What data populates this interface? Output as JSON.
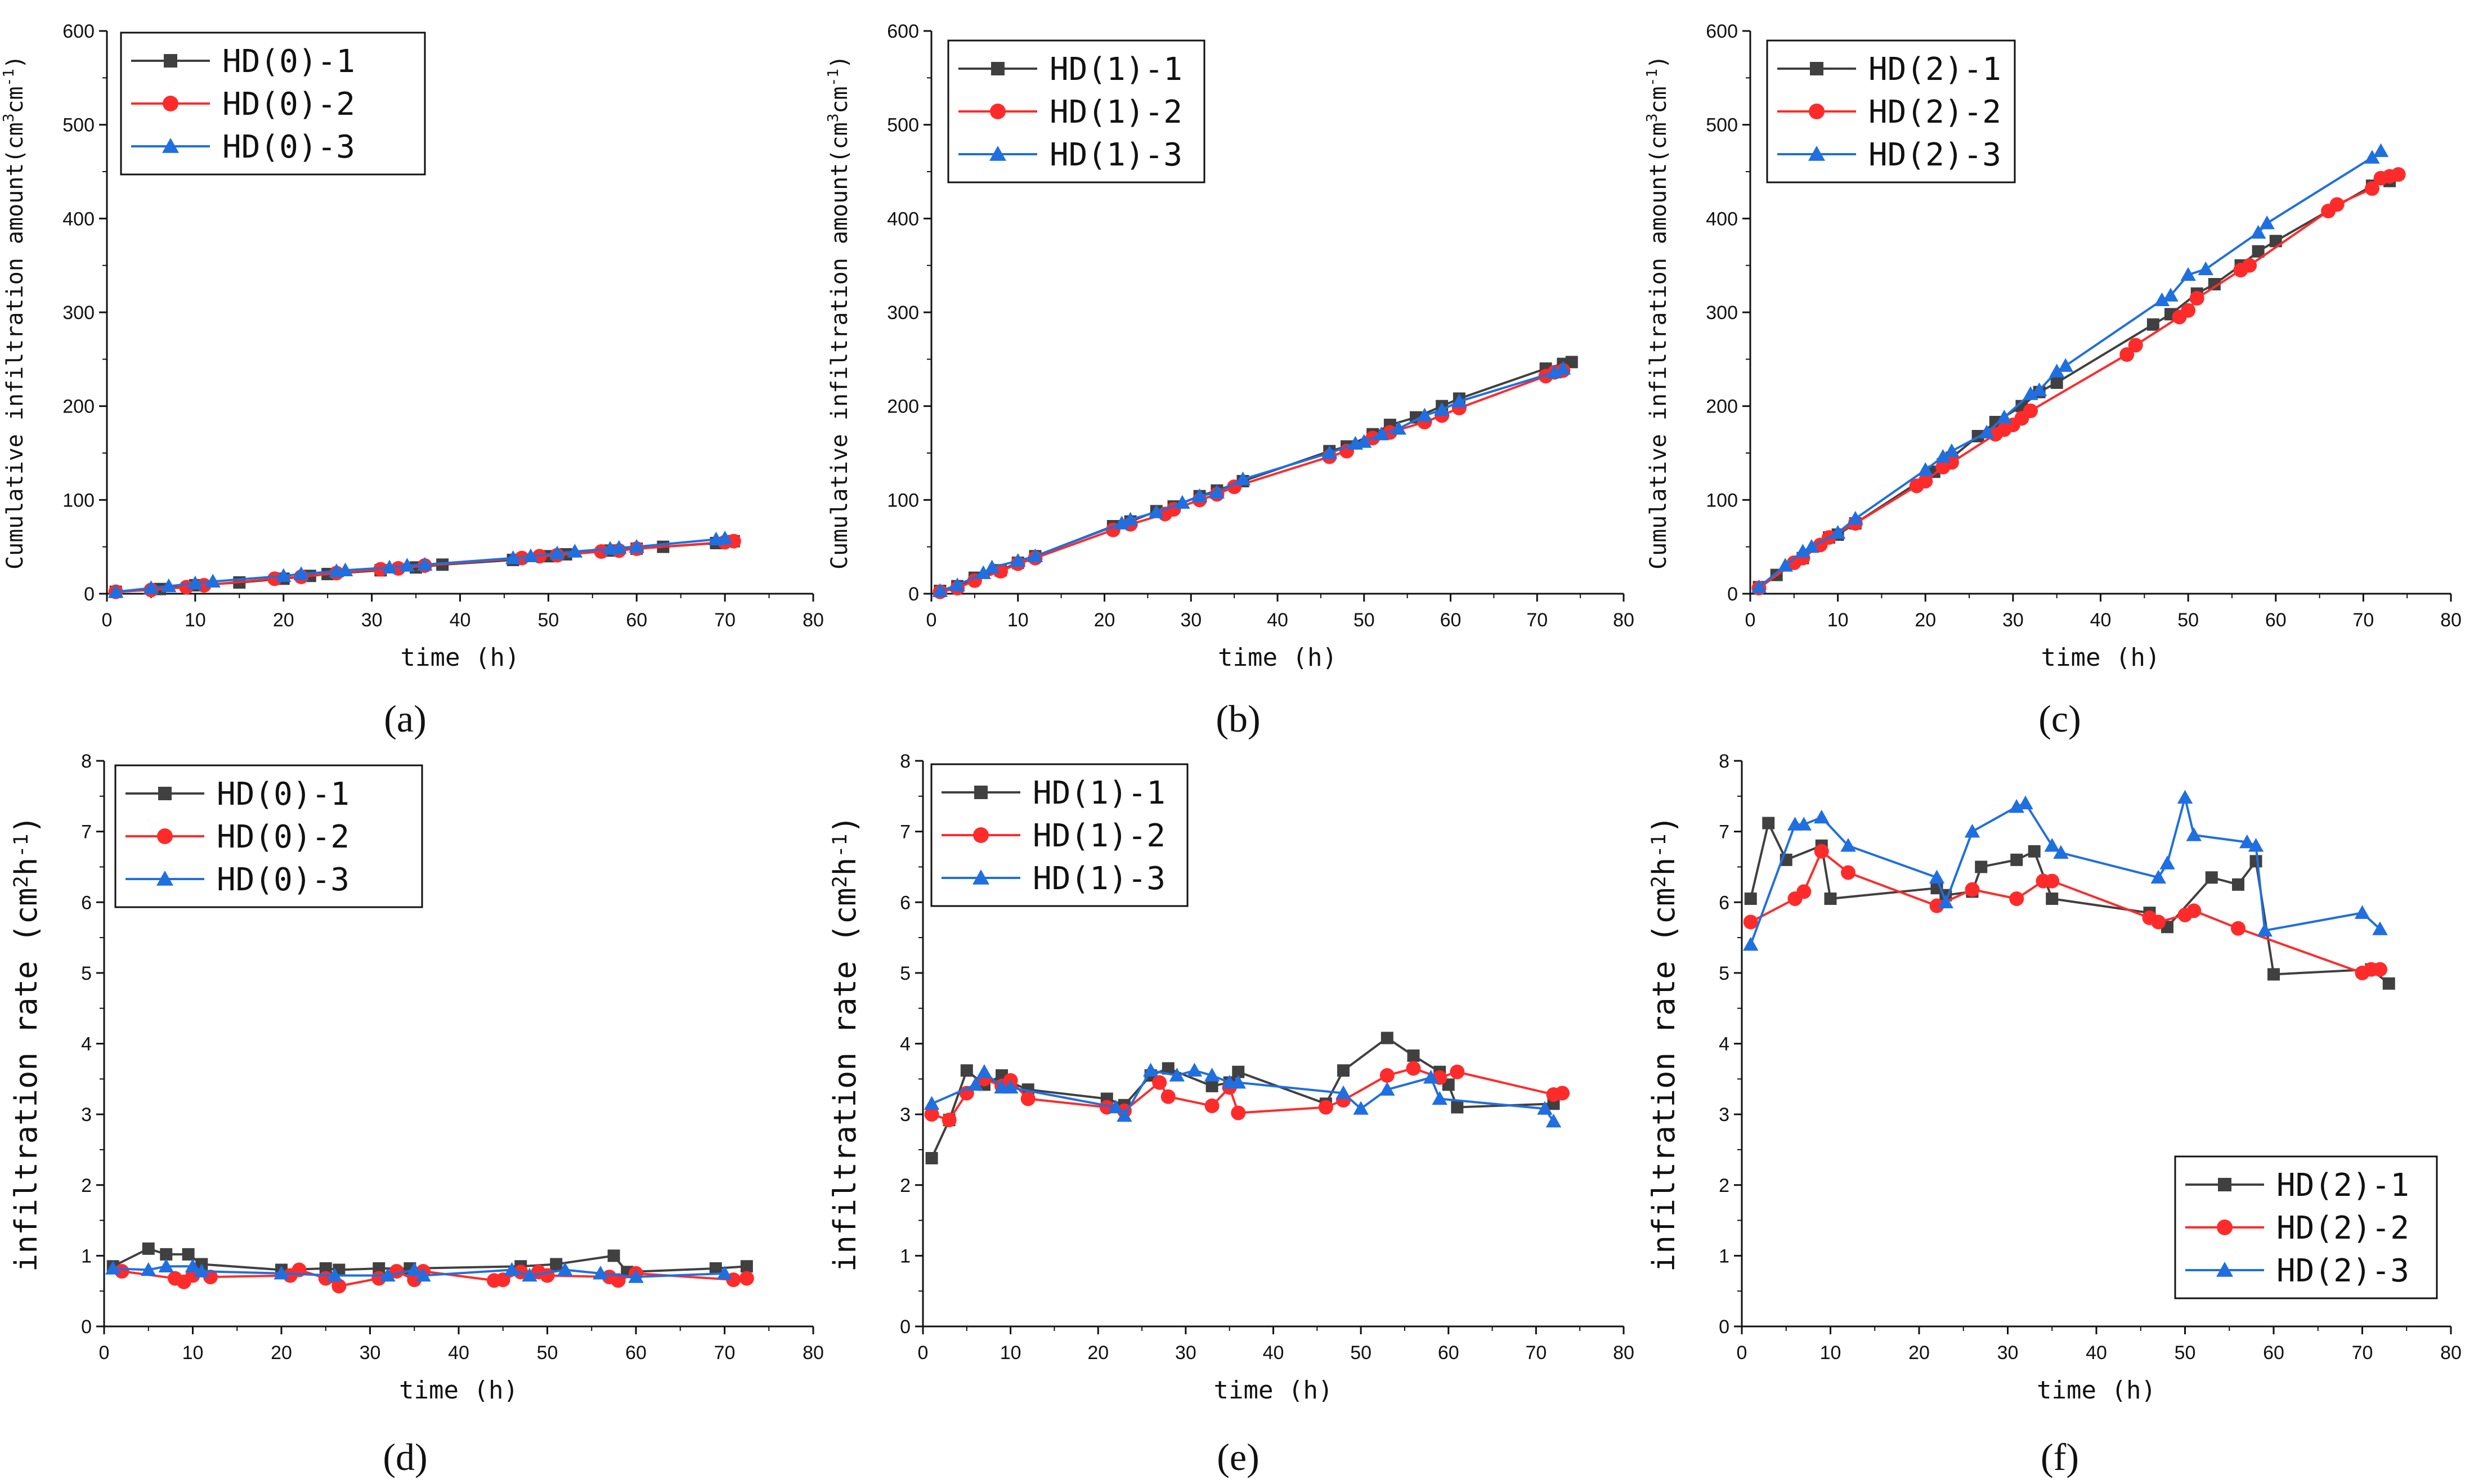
{
  "figure_type": "multi-panel line charts",
  "chart_data": [
    {
      "panel": "(a)",
      "type": "line",
      "xlabel": "time (h)",
      "ylabel_main": "Cumulative infiltration amount(cm",
      "ylabel_sup1": "3",
      "ylabel_mid": "cm",
      "ylabel_sup2": "-1",
      "ylabel_end": ")",
      "xlim": [
        0,
        80
      ],
      "ylim": [
        0,
        600
      ],
      "xticks": [
        "0",
        "10",
        "20",
        "30",
        "40",
        "50",
        "60",
        "70",
        "80"
      ],
      "yticks": [
        "0",
        "100",
        "200",
        "300",
        "400",
        "500",
        "600"
      ],
      "legend_position": "top-left",
      "series": [
        {
          "name": "HD(0)-1",
          "color": "#404040",
          "marker": "square",
          "x": [
            1,
            6,
            10,
            15,
            20,
            23,
            25,
            31,
            35,
            38,
            46,
            50,
            52,
            57,
            60,
            63,
            69,
            71
          ],
          "y": [
            2,
            5,
            9,
            12,
            16,
            19,
            21,
            25,
            28,
            31,
            36,
            40,
            42,
            46,
            48,
            50,
            54,
            56
          ]
        },
        {
          "name": "HD(0)-2",
          "color": "#ff2b2b",
          "marker": "circle",
          "x": [
            1,
            5,
            9,
            11,
            19,
            22,
            26,
            31,
            33,
            36,
            47,
            49,
            51,
            56,
            58,
            60,
            70,
            71
          ],
          "y": [
            2,
            4,
            7,
            9,
            16,
            18,
            22,
            26,
            27,
            30,
            38,
            40,
            41,
            45,
            46,
            48,
            55,
            56
          ]
        },
        {
          "name": "HD(0)-3",
          "color": "#1f6fe0",
          "marker": "triangle",
          "x": [
            1,
            5,
            7,
            10,
            12,
            20,
            22,
            26,
            27,
            32,
            34,
            36,
            46,
            48,
            51,
            53,
            57,
            58,
            60,
            69,
            70
          ],
          "y": [
            2,
            6,
            8,
            11,
            13,
            19,
            21,
            24,
            25,
            28,
            30,
            31,
            38,
            40,
            43,
            45,
            48,
            49,
            50,
            58,
            59
          ]
        }
      ]
    },
    {
      "panel": "(b)",
      "type": "line",
      "xlabel": "time (h)",
      "ylabel_main": "Cumulative infiltration amount(cm",
      "ylabel_sup1": "3",
      "ylabel_mid": "cm",
      "ylabel_sup2": "-1",
      "ylabel_end": ")",
      "xlim": [
        0,
        80
      ],
      "ylim": [
        0,
        600
      ],
      "xticks": [
        "0",
        "10",
        "20",
        "30",
        "40",
        "50",
        "60",
        "70",
        "80"
      ],
      "yticks": [
        "0",
        "100",
        "200",
        "300",
        "400",
        "500",
        "600"
      ],
      "legend_position": "top-left",
      "series": [
        {
          "name": "HD(1)-1",
          "color": "#404040",
          "marker": "square",
          "x": [
            1,
            3,
            5,
            8,
            10,
            12,
            21,
            23,
            26,
            28,
            31,
            33,
            36,
            46,
            48,
            51,
            53,
            56,
            59,
            61,
            71,
            73,
            74
          ],
          "y": [
            3,
            8,
            17,
            25,
            33,
            40,
            72,
            77,
            88,
            93,
            104,
            110,
            120,
            152,
            157,
            170,
            180,
            188,
            200,
            208,
            240,
            245,
            247
          ]
        },
        {
          "name": "HD(1)-2",
          "color": "#ff2b2b",
          "marker": "circle",
          "x": [
            1,
            3,
            5,
            8,
            10,
            12,
            21,
            23,
            27,
            28,
            31,
            33,
            35,
            46,
            48,
            51,
            53,
            57,
            59,
            61,
            71,
            72,
            73
          ],
          "y": [
            2,
            6,
            14,
            24,
            32,
            38,
            68,
            74,
            85,
            90,
            100,
            106,
            114,
            146,
            152,
            166,
            172,
            183,
            190,
            198,
            232,
            236,
            238
          ]
        },
        {
          "name": "HD(1)-3",
          "color": "#1f6fe0",
          "marker": "triangle",
          "x": [
            1,
            3,
            6,
            7,
            10,
            12,
            22,
            23,
            26,
            29,
            31,
            33,
            36,
            46,
            49,
            50,
            52,
            54,
            57,
            59,
            61,
            72,
            73
          ],
          "y": [
            3,
            9,
            22,
            28,
            35,
            40,
            75,
            79,
            87,
            97,
            104,
            108,
            122,
            150,
            160,
            162,
            170,
            176,
            190,
            196,
            205,
            236,
            240
          ]
        }
      ]
    },
    {
      "panel": "(c)",
      "type": "line",
      "xlabel": "time (h)",
      "ylabel_main": "Cumulative infiltration amount(cm",
      "ylabel_sup1": "3",
      "ylabel_mid": "cm",
      "ylabel_sup2": "-1",
      "ylabel_end": ")",
      "xlim": [
        0,
        80
      ],
      "ylim": [
        0,
        600
      ],
      "xticks": [
        "0",
        "10",
        "20",
        "30",
        "40",
        "50",
        "60",
        "70",
        "80"
      ],
      "yticks": [
        "0",
        "100",
        "200",
        "300",
        "400",
        "500",
        "600"
      ],
      "legend_position": "top-left",
      "series": [
        {
          "name": "HD(2)-1",
          "color": "#404040",
          "marker": "square",
          "x": [
            1,
            3,
            6,
            9,
            10,
            12,
            21,
            22,
            23,
            26,
            28,
            31,
            33,
            35,
            46,
            48,
            51,
            53,
            56,
            58,
            60,
            71,
            73
          ],
          "y": [
            7,
            20,
            38,
            60,
            63,
            75,
            130,
            138,
            145,
            168,
            183,
            200,
            215,
            225,
            287,
            298,
            320,
            330,
            350,
            365,
            376,
            435,
            440
          ]
        },
        {
          "name": "HD(2)-2",
          "color": "#ff2b2b",
          "marker": "circle",
          "x": [
            1,
            5,
            6,
            8,
            9,
            12,
            19,
            20,
            22,
            23,
            28,
            29,
            30,
            31,
            32,
            43,
            44,
            49,
            50,
            51,
            56,
            57,
            66,
            67,
            71,
            72,
            73,
            74
          ],
          "y": [
            6,
            33,
            38,
            52,
            60,
            75,
            115,
            120,
            135,
            140,
            170,
            175,
            180,
            187,
            195,
            255,
            265,
            295,
            302,
            315,
            345,
            350,
            408,
            415,
            432,
            443,
            445,
            447
          ]
        },
        {
          "name": "HD(2)-3",
          "color": "#1f6fe0",
          "marker": "triangle",
          "x": [
            1,
            4,
            6,
            7,
            10,
            12,
            20,
            22,
            23,
            27,
            29,
            32,
            33,
            35,
            36,
            47,
            48,
            50,
            52,
            58,
            59,
            71,
            72
          ],
          "y": [
            7,
            30,
            45,
            50,
            65,
            80,
            132,
            146,
            152,
            172,
            188,
            213,
            217,
            237,
            243,
            313,
            318,
            340,
            346,
            385,
            395,
            465,
            472
          ]
        }
      ]
    },
    {
      "panel": "(d)",
      "type": "line",
      "xlabel": "time (h)",
      "ylabel_main": "infiltration rate (cm",
      "ylabel_sup1": "2",
      "ylabel_mid": "h",
      "ylabel_sup2": "-1",
      "ylabel_end": ")",
      "xlim": [
        0,
        80
      ],
      "ylim": [
        0,
        8
      ],
      "xticks": [
        "0",
        "10",
        "20",
        "30",
        "40",
        "50",
        "60",
        "70",
        "80"
      ],
      "yticks": [
        "0",
        "1",
        "2",
        "3",
        "4",
        "5",
        "6",
        "7",
        "8"
      ],
      "legend_position": "top-left",
      "series": [
        {
          "name": "HD(0)-1",
          "color": "#404040",
          "marker": "square",
          "x": [
            1,
            5,
            7,
            9.5,
            11,
            20,
            25,
            26.5,
            31,
            34.5,
            47,
            51,
            57.5,
            59,
            69,
            72.5
          ],
          "y": [
            0.85,
            1.1,
            1.02,
            1.02,
            0.88,
            0.8,
            0.82,
            0.8,
            0.82,
            0.82,
            0.85,
            0.88,
            1.0,
            0.77,
            0.82,
            0.85
          ]
        },
        {
          "name": "HD(0)-2",
          "color": "#ff2b2b",
          "marker": "circle",
          "x": [
            2,
            8,
            9,
            10,
            12,
            21,
            22,
            25,
            26.5,
            31,
            33,
            35,
            36,
            44,
            45,
            47,
            49,
            50,
            57,
            58,
            60,
            71,
            72.5
          ],
          "y": [
            0.78,
            0.68,
            0.63,
            0.72,
            0.7,
            0.72,
            0.8,
            0.68,
            0.57,
            0.68,
            0.78,
            0.66,
            0.78,
            0.65,
            0.66,
            0.77,
            0.77,
            0.72,
            0.7,
            0.65,
            0.75,
            0.66,
            0.68
          ]
        },
        {
          "name": "HD(0)-3",
          "color": "#1f6fe0",
          "marker": "triangle",
          "x": [
            1,
            5,
            7,
            10,
            11,
            20,
            26,
            32,
            35,
            36,
            46,
            48,
            52,
            56,
            60,
            70
          ],
          "y": [
            0.82,
            0.8,
            0.85,
            0.85,
            0.78,
            0.75,
            0.72,
            0.72,
            0.8,
            0.72,
            0.8,
            0.72,
            0.8,
            0.75,
            0.7,
            0.75
          ]
        }
      ]
    },
    {
      "panel": "(e)",
      "type": "line",
      "xlabel": "time (h)",
      "ylabel_main": "infiltration rate (cm",
      "ylabel_sup1": "2",
      "ylabel_mid": "h",
      "ylabel_sup2": "-1",
      "ylabel_end": ")",
      "xlim": [
        0,
        80
      ],
      "ylim": [
        0,
        8
      ],
      "xticks": [
        "0",
        "10",
        "20",
        "30",
        "40",
        "50",
        "60",
        "70",
        "80"
      ],
      "yticks": [
        "0",
        "1",
        "2",
        "3",
        "4",
        "5",
        "6",
        "7",
        "8"
      ],
      "legend_position": "top-left",
      "series": [
        {
          "name": "HD(1)-1",
          "color": "#404040",
          "marker": "square",
          "x": [
            1,
            3,
            5,
            7,
            9,
            10,
            12,
            21,
            23,
            26,
            28,
            33,
            35,
            36,
            46,
            48,
            53,
            56,
            59,
            60,
            61,
            72
          ],
          "y": [
            2.38,
            2.92,
            3.62,
            3.42,
            3.55,
            3.45,
            3.35,
            3.22,
            3.13,
            3.55,
            3.65,
            3.4,
            3.45,
            3.6,
            3.15,
            3.62,
            4.08,
            3.83,
            3.6,
            3.42,
            3.1,
            3.15
          ]
        },
        {
          "name": "HD(1)-2",
          "color": "#ff2b2b",
          "marker": "circle",
          "x": [
            1,
            3,
            5,
            7,
            9,
            10,
            12,
            21,
            23,
            27,
            28,
            33,
            35,
            36,
            46,
            48,
            53,
            56,
            59,
            61,
            72,
            73
          ],
          "y": [
            3.0,
            2.92,
            3.3,
            3.5,
            3.4,
            3.48,
            3.22,
            3.1,
            3.05,
            3.45,
            3.25,
            3.12,
            3.38,
            3.02,
            3.1,
            3.2,
            3.55,
            3.65,
            3.52,
            3.6,
            3.28,
            3.3
          ]
        },
        {
          "name": "HD(1)-3",
          "color": "#1f6fe0",
          "marker": "triangle",
          "x": [
            1,
            6,
            7,
            9,
            10,
            22,
            23,
            26,
            29,
            31,
            33,
            35,
            36,
            48,
            50,
            53,
            58,
            59,
            71,
            72
          ],
          "y": [
            3.15,
            3.42,
            3.6,
            3.38,
            3.38,
            3.1,
            2.98,
            3.62,
            3.55,
            3.62,
            3.55,
            3.45,
            3.45,
            3.3,
            3.08,
            3.35,
            3.52,
            3.22,
            3.08,
            2.9
          ]
        }
      ]
    },
    {
      "panel": "(f)",
      "type": "line",
      "xlabel": "time (h)",
      "ylabel_main": "infiltration rate (cm",
      "ylabel_sup1": "2",
      "ylabel_mid": "h",
      "ylabel_sup2": "-1",
      "ylabel_end": ")",
      "xlim": [
        0,
        80
      ],
      "ylim": [
        0,
        8
      ],
      "xticks": [
        "0",
        "10",
        "20",
        "30",
        "40",
        "50",
        "60",
        "70",
        "80"
      ],
      "yticks": [
        "0",
        "1",
        "2",
        "3",
        "4",
        "5",
        "6",
        "7",
        "8"
      ],
      "legend_position": "bottom-right",
      "series": [
        {
          "name": "HD(2)-1",
          "color": "#404040",
          "marker": "square",
          "x": [
            1,
            3,
            5,
            9,
            10,
            22,
            23,
            26,
            27,
            31,
            33,
            35,
            46,
            48,
            53,
            56,
            58,
            60,
            71,
            73
          ],
          "y": [
            6.05,
            7.12,
            6.6,
            6.8,
            6.05,
            6.2,
            6.1,
            6.15,
            6.5,
            6.6,
            6.72,
            6.05,
            5.85,
            5.65,
            6.35,
            6.25,
            6.58,
            4.98,
            5.05,
            4.85
          ]
        },
        {
          "name": "HD(2)-2",
          "color": "#ff2b2b",
          "marker": "circle",
          "x": [
            1,
            6,
            7,
            9,
            12,
            22,
            26,
            31,
            34,
            35,
            46,
            47,
            50,
            51,
            56,
            70,
            71,
            72
          ],
          "y": [
            5.72,
            6.05,
            6.15,
            6.72,
            6.42,
            5.95,
            6.18,
            6.05,
            6.3,
            6.3,
            5.78,
            5.72,
            5.82,
            5.88,
            5.63,
            5.0,
            5.05,
            5.05
          ]
        },
        {
          "name": "HD(2)-3",
          "color": "#1f6fe0",
          "marker": "triangle",
          "x": [
            1,
            6,
            7,
            9,
            12,
            22,
            23,
            26,
            31,
            32,
            35,
            36,
            47,
            48,
            50,
            51,
            57,
            58,
            59,
            70,
            72
          ],
          "y": [
            5.4,
            7.1,
            7.1,
            7.2,
            6.8,
            6.35,
            6.0,
            7.0,
            7.35,
            7.4,
            6.8,
            6.7,
            6.35,
            6.55,
            7.48,
            6.95,
            6.85,
            6.8,
            5.6,
            5.85,
            5.62
          ]
        }
      ]
    }
  ]
}
